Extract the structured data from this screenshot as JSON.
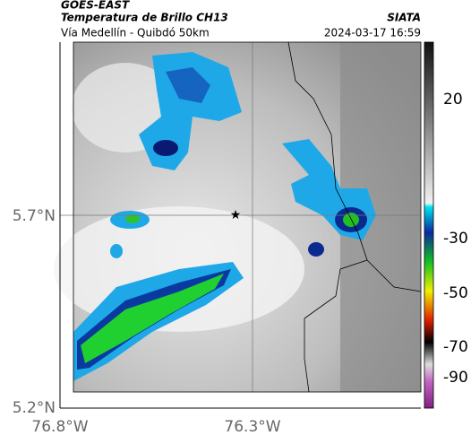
{
  "header": {
    "source": "GOES-EAST",
    "title": "Temperatura de Brillo CH13",
    "org": "SIATA",
    "subtitle": "Vía Medellín - Quibdó 50km",
    "timestamp": "2024-03-17 16:59"
  },
  "axes": {
    "lat_labels": [
      "5.7°N",
      "5.2°N"
    ],
    "lon_labels": [
      "76.8°W",
      "76.3°W"
    ]
  },
  "colorbar": {
    "ticks": [
      "20",
      "-30",
      "-50",
      "-70",
      "-90"
    ]
  }
}
